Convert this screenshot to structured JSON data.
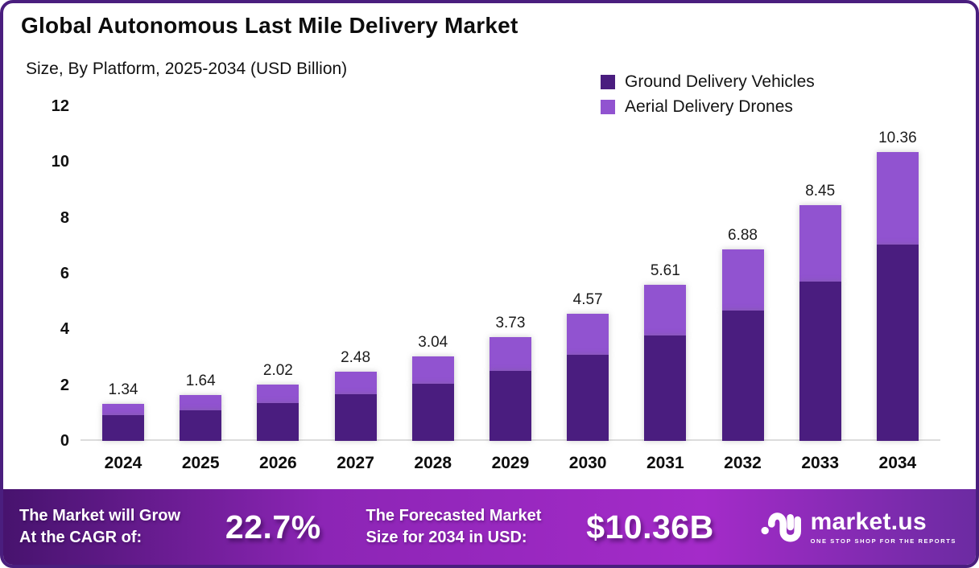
{
  "header": {
    "title": "Global Autonomous Last Mile Delivery Market",
    "subtitle": "Size, By Platform, 2025-2034 (USD Billion)"
  },
  "legend": [
    {
      "label": "Ground Delivery Vehicles",
      "color": "#4A1D7F"
    },
    {
      "label": "Aerial Delivery Drones",
      "color": "#9153D0"
    }
  ],
  "chart_data": {
    "type": "bar",
    "stacked": true,
    "title": "Global Autonomous Last Mile Delivery Market",
    "subtitle": "Size, By Platform, 2025-2034 (USD Billion)",
    "categories": [
      "2024",
      "2025",
      "2026",
      "2027",
      "2028",
      "2029",
      "2030",
      "2031",
      "2032",
      "2033",
      "2034"
    ],
    "series": [
      {
        "name": "Ground Delivery Vehicles",
        "color": "#4A1D7F",
        "values": [
          0.91,
          1.1,
          1.36,
          1.68,
          2.05,
          2.52,
          3.1,
          3.77,
          4.66,
          5.71,
          7.03
        ]
      },
      {
        "name": "Aerial Delivery Drones",
        "color": "#9153D0",
        "values": [
          0.43,
          0.54,
          0.66,
          0.8,
          0.99,
          1.21,
          1.47,
          1.84,
          2.22,
          2.74,
          3.33
        ]
      }
    ],
    "totals": [
      1.34,
      1.64,
      2.02,
      2.48,
      3.04,
      3.73,
      4.57,
      5.61,
      6.88,
      8.45,
      10.36
    ],
    "total_labels": [
      "1.34",
      "1.64",
      "2.02",
      "2.48",
      "3.04",
      "3.73",
      "4.57",
      "5.61",
      "6.88",
      "8.45",
      "10.36"
    ],
    "y_ticks": [
      0,
      2,
      4,
      6,
      8,
      10,
      12
    ],
    "ylim": [
      0,
      12
    ],
    "grid": false,
    "legend_position": "top-right",
    "unit": "USD Billion"
  },
  "footer": {
    "cagr_label_line1": "The Market will Grow",
    "cagr_label_line2": "At the CAGR of:",
    "cagr_value": "22.7%",
    "forecast_label_line1": "The Forecasted Market",
    "forecast_label_line2": "Size for 2034 in USD:",
    "forecast_value": "$10.36B",
    "brand_name": "market.us",
    "brand_tagline": "ONE STOP SHOP FOR THE REPORTS"
  }
}
